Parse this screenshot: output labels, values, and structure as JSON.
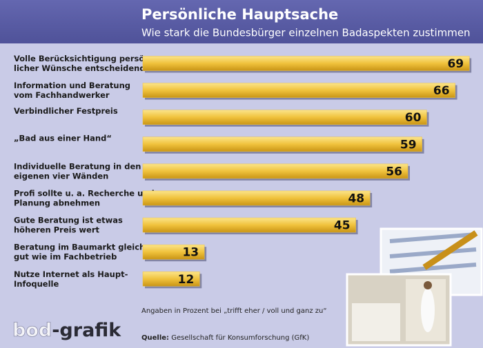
{
  "chart_data": {
    "type": "bar",
    "orientation": "horizontal",
    "title": "Persönliche Hauptsache",
    "subtitle": "Wie stark die Bundesbürger einzelnen Badaspekten zustimmen",
    "categories": [
      [
        "Volle Berücksichtigung persön-",
        "licher Wünsche entscheidend"
      ],
      [
        "Information und Beratung",
        "vom Fachhandwerker"
      ],
      [
        "Verbindlicher Festpreis"
      ],
      [
        "„Bad aus einer Hand“"
      ],
      [
        "Individuelle Beratung in den",
        "eigenen vier Wänden"
      ],
      [
        "Profi sollte u. a. Recherche und",
        "Planung abnehmen"
      ],
      [
        "Gute Beratung ist etwas",
        "höheren Preis wert"
      ],
      [
        "Beratung im Baumarkt gleich",
        "gut wie im Fachbetrieb"
      ],
      [
        "Nutze Internet als Haupt-",
        "Infoquelle"
      ]
    ],
    "values": [
      69,
      66,
      60,
      59,
      56,
      48,
      45,
      13,
      12
    ],
    "color": "#f0c23c",
    "xlim": [
      0,
      70
    ],
    "note": "Angaben in Prozent bei „trifft eher / voll und ganz zu“",
    "source_label": "Quelle:",
    "source": "Gesellschaft für Konsumforschung (GfK)",
    "logo": [
      "bod",
      "-grafik"
    ]
  }
}
